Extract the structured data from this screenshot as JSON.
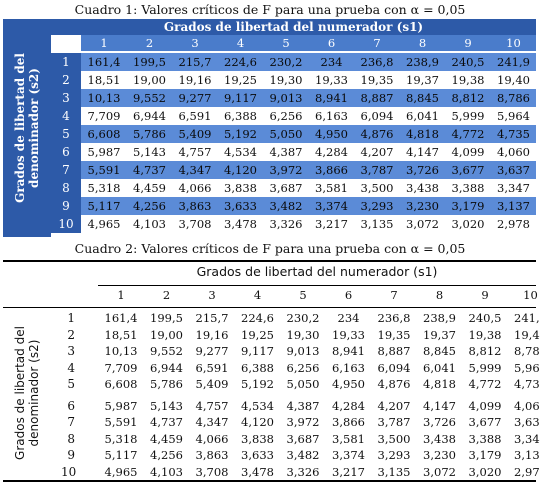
{
  "table1": {
    "caption": "Cuadro 1: Valores críticos de F para una prueba con α = 0,05",
    "numerator_header": "Grados de libertad del numerador (s1)",
    "denominator_line1": "Grados de libertad del",
    "denominator_line2": "denominador (s2)"
  },
  "table2": {
    "caption": "Cuadro 2: Valores críticos de F para una prueba con α = 0,05",
    "numerator_header": "Grados de libertad del numerador (s1)",
    "denominator_line1": "Grados de libertad del",
    "denominator_line2": "denominador (s2)"
  },
  "columns": [
    "1",
    "2",
    "3",
    "4",
    "5",
    "6",
    "7",
    "8",
    "9",
    "10"
  ],
  "rows": [
    {
      "df": "1",
      "values": [
        "161,4",
        "199,5",
        "215,7",
        "224,6",
        "230,2",
        "234",
        "236,8",
        "238,9",
        "240,5",
        "241,9"
      ]
    },
    {
      "df": "2",
      "values": [
        "18,51",
        "19,00",
        "19,16",
        "19,25",
        "19,30",
        "19,33",
        "19,35",
        "19,37",
        "19,38",
        "19,40"
      ]
    },
    {
      "df": "3",
      "values": [
        "10,13",
        "9,552",
        "9,277",
        "9,117",
        "9,013",
        "8,941",
        "8,887",
        "8,845",
        "8,812",
        "8,786"
      ]
    },
    {
      "df": "4",
      "values": [
        "7,709",
        "6,944",
        "6,591",
        "6,388",
        "6,256",
        "6,163",
        "6,094",
        "6,041",
        "5,999",
        "5,964"
      ]
    },
    {
      "df": "5",
      "values": [
        "6,608",
        "5,786",
        "5,409",
        "5,192",
        "5,050",
        "4,950",
        "4,876",
        "4,818",
        "4,772",
        "4,735"
      ]
    },
    {
      "df": "6",
      "values": [
        "5,987",
        "5,143",
        "4,757",
        "4,534",
        "4,387",
        "4,284",
        "4,207",
        "4,147",
        "4,099",
        "4,060"
      ]
    },
    {
      "df": "7",
      "values": [
        "5,591",
        "4,737",
        "4,347",
        "4,120",
        "3,972",
        "3,866",
        "3,787",
        "3,726",
        "3,677",
        "3,637"
      ]
    },
    {
      "df": "8",
      "values": [
        "5,318",
        "4,459",
        "4,066",
        "3,838",
        "3,687",
        "3,581",
        "3,500",
        "3,438",
        "3,388",
        "3,347"
      ]
    },
    {
      "df": "9",
      "values": [
        "5,117",
        "4,256",
        "3,863",
        "3,633",
        "3,482",
        "3,374",
        "3,293",
        "3,230",
        "3,179",
        "3,137"
      ]
    },
    {
      "df": "10",
      "values": [
        "4,965",
        "4,103",
        "3,708",
        "3,478",
        "3,326",
        "3,217",
        "3,135",
        "3,072",
        "3,020",
        "2,978"
      ]
    }
  ]
}
